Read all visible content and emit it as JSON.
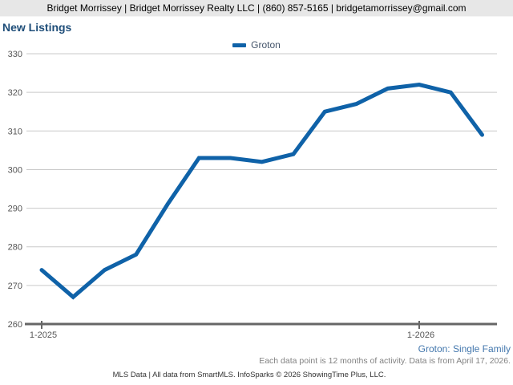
{
  "header": {
    "contact_line": "Bridget Morrissey | Bridget Morrissey Realty LLC | (860) 857-5165 | bridgetamorrissey@gmail.com"
  },
  "title": "New Listings",
  "legend": {
    "label": "Groton"
  },
  "chart_data": {
    "type": "line",
    "title": "New Listings",
    "categories": [
      "1-2025",
      "2-2025",
      "3-2025",
      "4-2025",
      "5-2025",
      "6-2025",
      "7-2025",
      "8-2025",
      "9-2025",
      "10-2025",
      "11-2025",
      "12-2025",
      "1-2026",
      "2-2026",
      "3-2026"
    ],
    "series": [
      {
        "name": "Groton",
        "color": "#0f62a8",
        "values": [
          274,
          267,
          274,
          278,
          291,
          303,
          303,
          302,
          304,
          315,
          317,
          321,
          322,
          320,
          309
        ]
      }
    ],
    "x_tick_labels": [
      {
        "index": 0,
        "label": "1-2025"
      },
      {
        "index": 12,
        "label": "1-2026"
      }
    ],
    "ylim": [
      260,
      330
    ],
    "y_tick_step": 10,
    "grid": true,
    "legend_position": "top-center"
  },
  "footer": {
    "series_note": "Groton: Single Family",
    "data_note": "Each data point is 12 months of activity. Data is from April 17, 2026.",
    "attribution": "MLS Data | All data from SmartMLS. InfoSparks © 2026 ShowingTime Plus, LLC."
  },
  "colors": {
    "header_bg": "#e7e7e7",
    "title_text": "#1f4e79",
    "line": "#0f62a8",
    "gridline": "#c9c9c9",
    "axis": "#666666",
    "tick_label": "#555555",
    "footer_series": "#4377ad",
    "footer_note": "#828282"
  }
}
